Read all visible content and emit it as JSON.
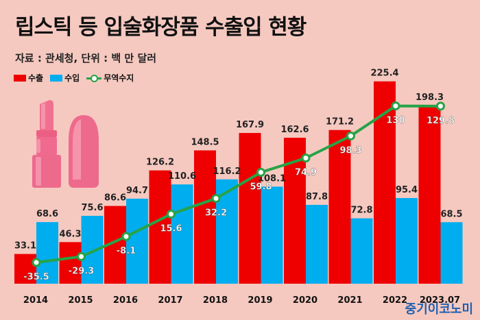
{
  "title": "립스틱 등 입술화장품 수출입 현황",
  "source": "자료 : 관세청, 단위 : 백 만 달러",
  "brand": "중기이코노미",
  "colors": {
    "export": "#ee0000",
    "import": "#00adef",
    "balance": "#27a347",
    "background": "#f5c9c0"
  },
  "icons": [
    "lipstick-icon",
    "lipstick-bullet-icon"
  ],
  "chart_data": {
    "type": "bar",
    "categories": [
      "2014",
      "2015",
      "2016",
      "2017",
      "2018",
      "2019",
      "2020",
      "2021",
      "2022",
      "2023.07"
    ],
    "series": [
      {
        "name": "수출",
        "kind": "bar",
        "values": [
          33.1,
          46.3,
          86.6,
          126.2,
          148.5,
          167.9,
          162.6,
          171.2,
          225.4,
          198.3
        ]
      },
      {
        "name": "수입",
        "kind": "bar",
        "values": [
          68.6,
          75.6,
          94.7,
          110.6,
          116.2,
          108.1,
          87.8,
          72.8,
          95.4,
          68.5
        ]
      },
      {
        "name": "무역수지",
        "kind": "line",
        "values": [
          -35.5,
          -29.3,
          -8.1,
          15.6,
          32.2,
          59.8,
          74.9,
          98.3,
          130,
          129.8
        ]
      }
    ],
    "data_labels": {
      "수출": [
        "33.1",
        "46.3",
        "86.6",
        "126.2",
        "148.5",
        "167.9",
        "162.6",
        "171.2",
        "225.4",
        "198.3"
      ],
      "수입": [
        "68.6",
        "75.6",
        "94.7",
        "110.6",
        "116.2",
        "108.1",
        "87.8",
        "72.8",
        "95.4",
        "68.5"
      ],
      "무역수지": [
        "-35.5",
        "-29.3",
        "-8.1",
        "15.6",
        "32.2",
        "59.8",
        "74.9",
        "98.3",
        "130",
        "129.8"
      ]
    },
    "legend": "top-left",
    "grid": false
  }
}
